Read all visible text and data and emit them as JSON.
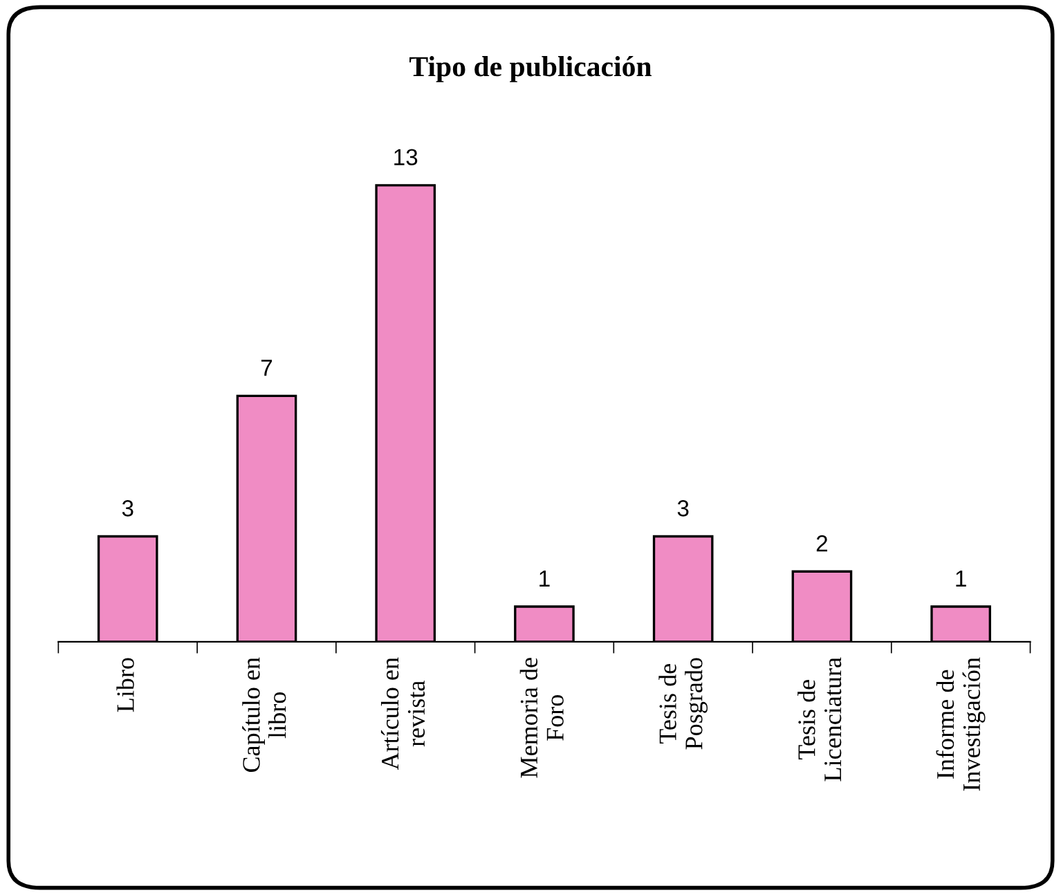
{
  "chart_data": {
    "type": "bar",
    "title": "Tipo de publicación",
    "categories": [
      "Libro",
      "Capítulo en\nlibro",
      "Artículo en\nrevista",
      "Memoria de\nForo",
      "Tesis de\nPosgrado",
      "Tesis de\nLicenciatura",
      "Informe de\nInvestigación"
    ],
    "values": [
      3,
      7,
      13,
      1,
      3,
      2,
      1
    ],
    "color": "#f08cc4",
    "data_labels": true,
    "grid": false,
    "legend": false
  }
}
